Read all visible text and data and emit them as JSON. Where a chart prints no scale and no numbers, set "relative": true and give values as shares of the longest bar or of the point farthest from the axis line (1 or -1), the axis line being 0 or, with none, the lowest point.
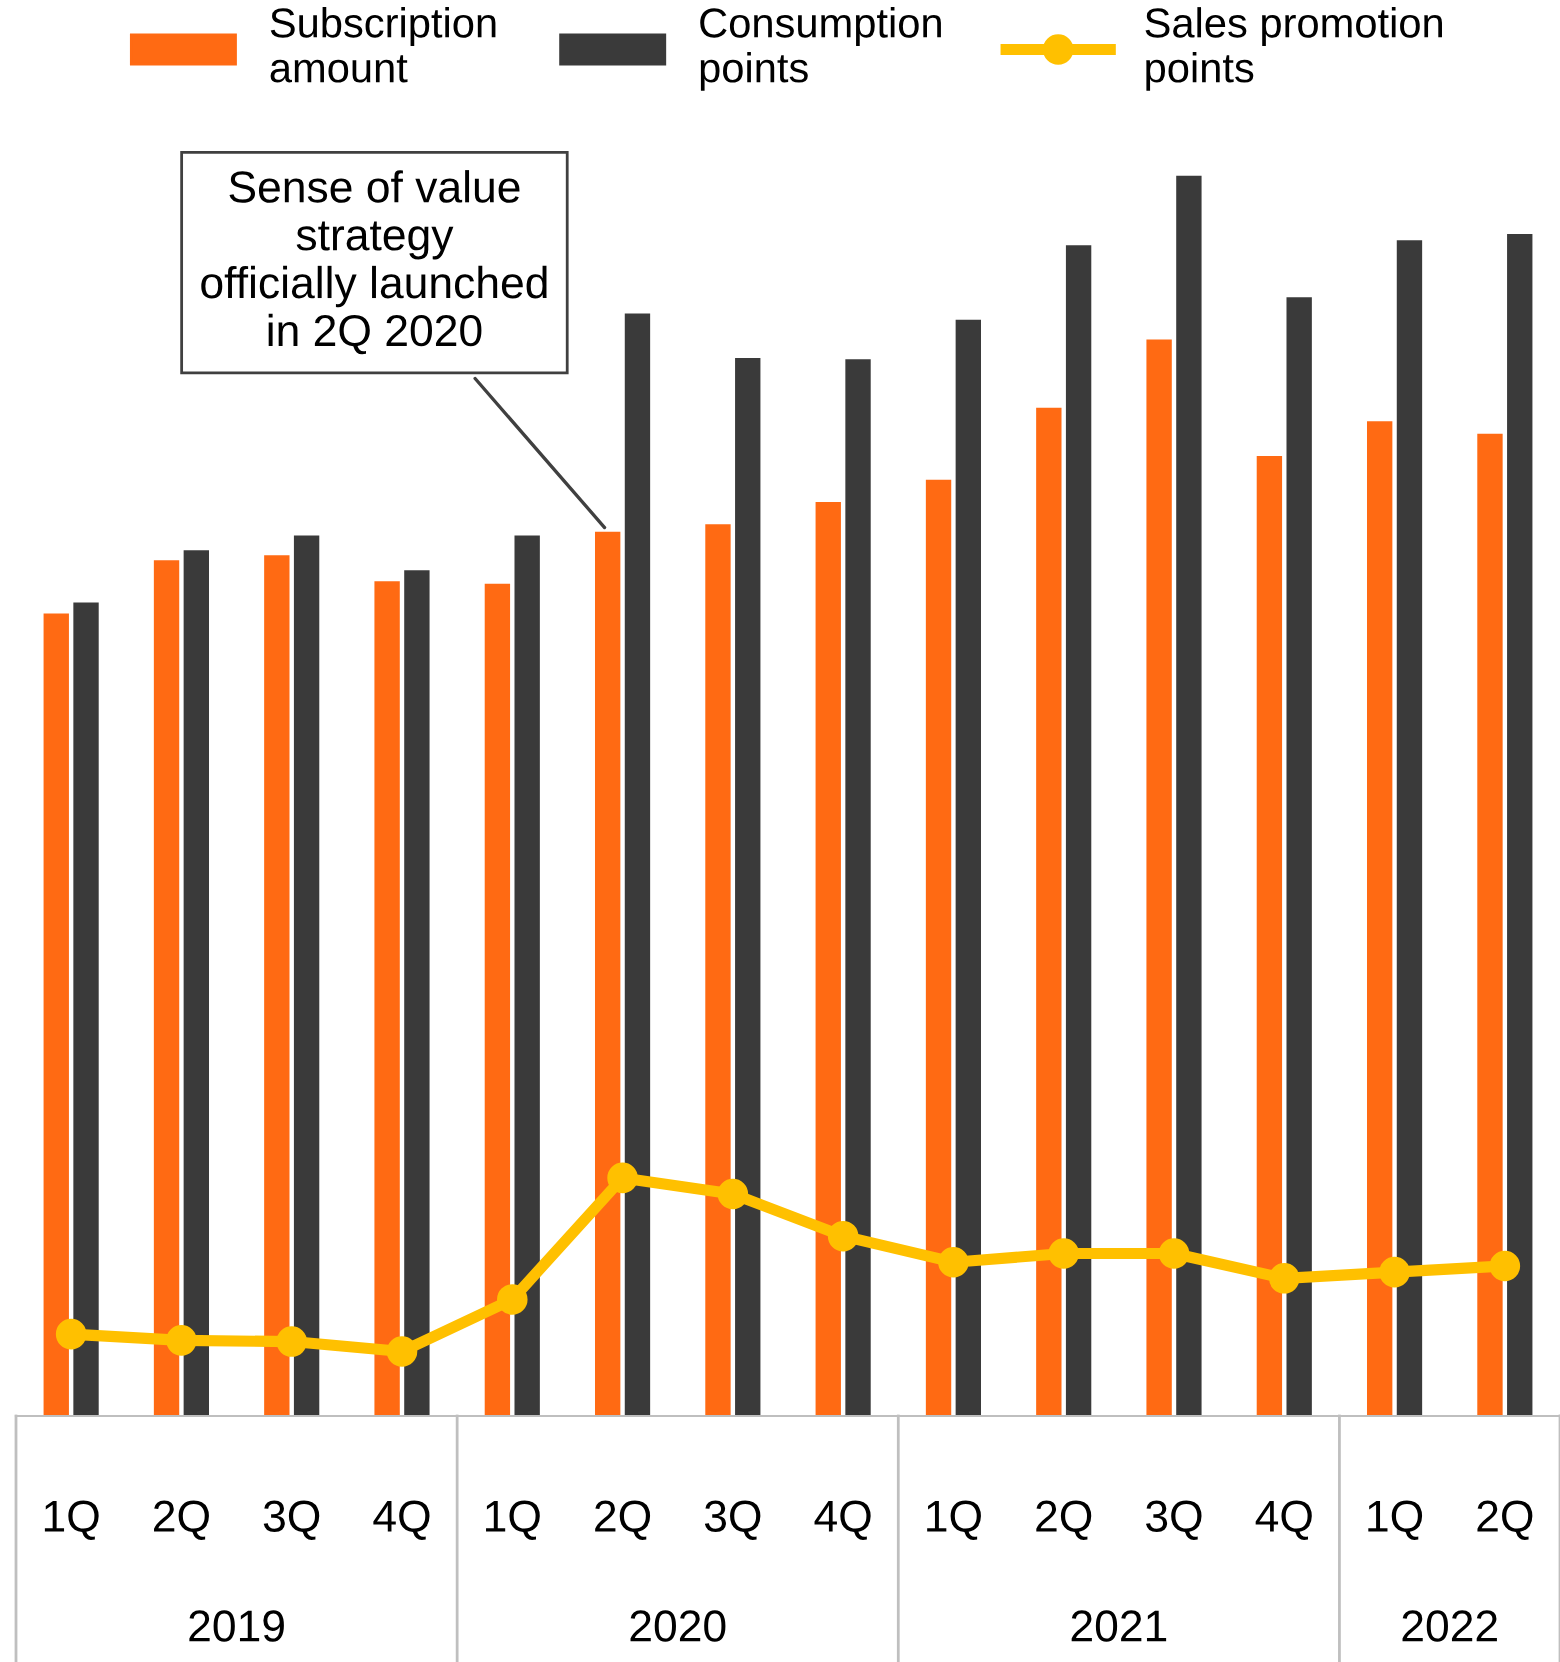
{
  "chart_data": {
    "type": "bar",
    "relative": true,
    "legend": "top",
    "grid": false,
    "categories": [
      "1Q",
      "2Q",
      "3Q",
      "4Q",
      "1Q",
      "2Q",
      "3Q",
      "4Q",
      "1Q",
      "2Q",
      "3Q",
      "4Q",
      "1Q",
      "2Q"
    ],
    "series": [
      {
        "name": "Subscription amount",
        "color": "#ff6a13",
        "values": [
          0.647,
          0.69,
          0.694,
          0.673,
          0.671,
          0.713,
          0.719,
          0.737,
          0.755,
          0.813,
          0.868,
          0.774,
          0.802,
          0.792
        ]
      },
      {
        "name": "Consumption points",
        "color": "#3a3a3a",
        "values": [
          0.656,
          0.698,
          0.71,
          0.682,
          0.71,
          0.889,
          0.853,
          0.852,
          0.884,
          0.944,
          1.0,
          0.902,
          0.948,
          0.953
        ]
      },
      {
        "name": "Sales promotion points",
        "type": "line",
        "marker": "circle",
        "color": "#ffc000",
        "values": [
          0.066,
          0.061,
          0.06,
          0.052,
          0.094,
          0.192,
          0.179,
          0.145,
          0.124,
          0.131,
          0.131,
          0.111,
          0.116,
          0.121
        ]
      }
    ],
    "annotations": [
      "Sense of value\nstrategy\nofficially launched\nin 2Q 2020",
      "2019",
      "2020",
      "2021",
      "2022"
    ]
  }
}
